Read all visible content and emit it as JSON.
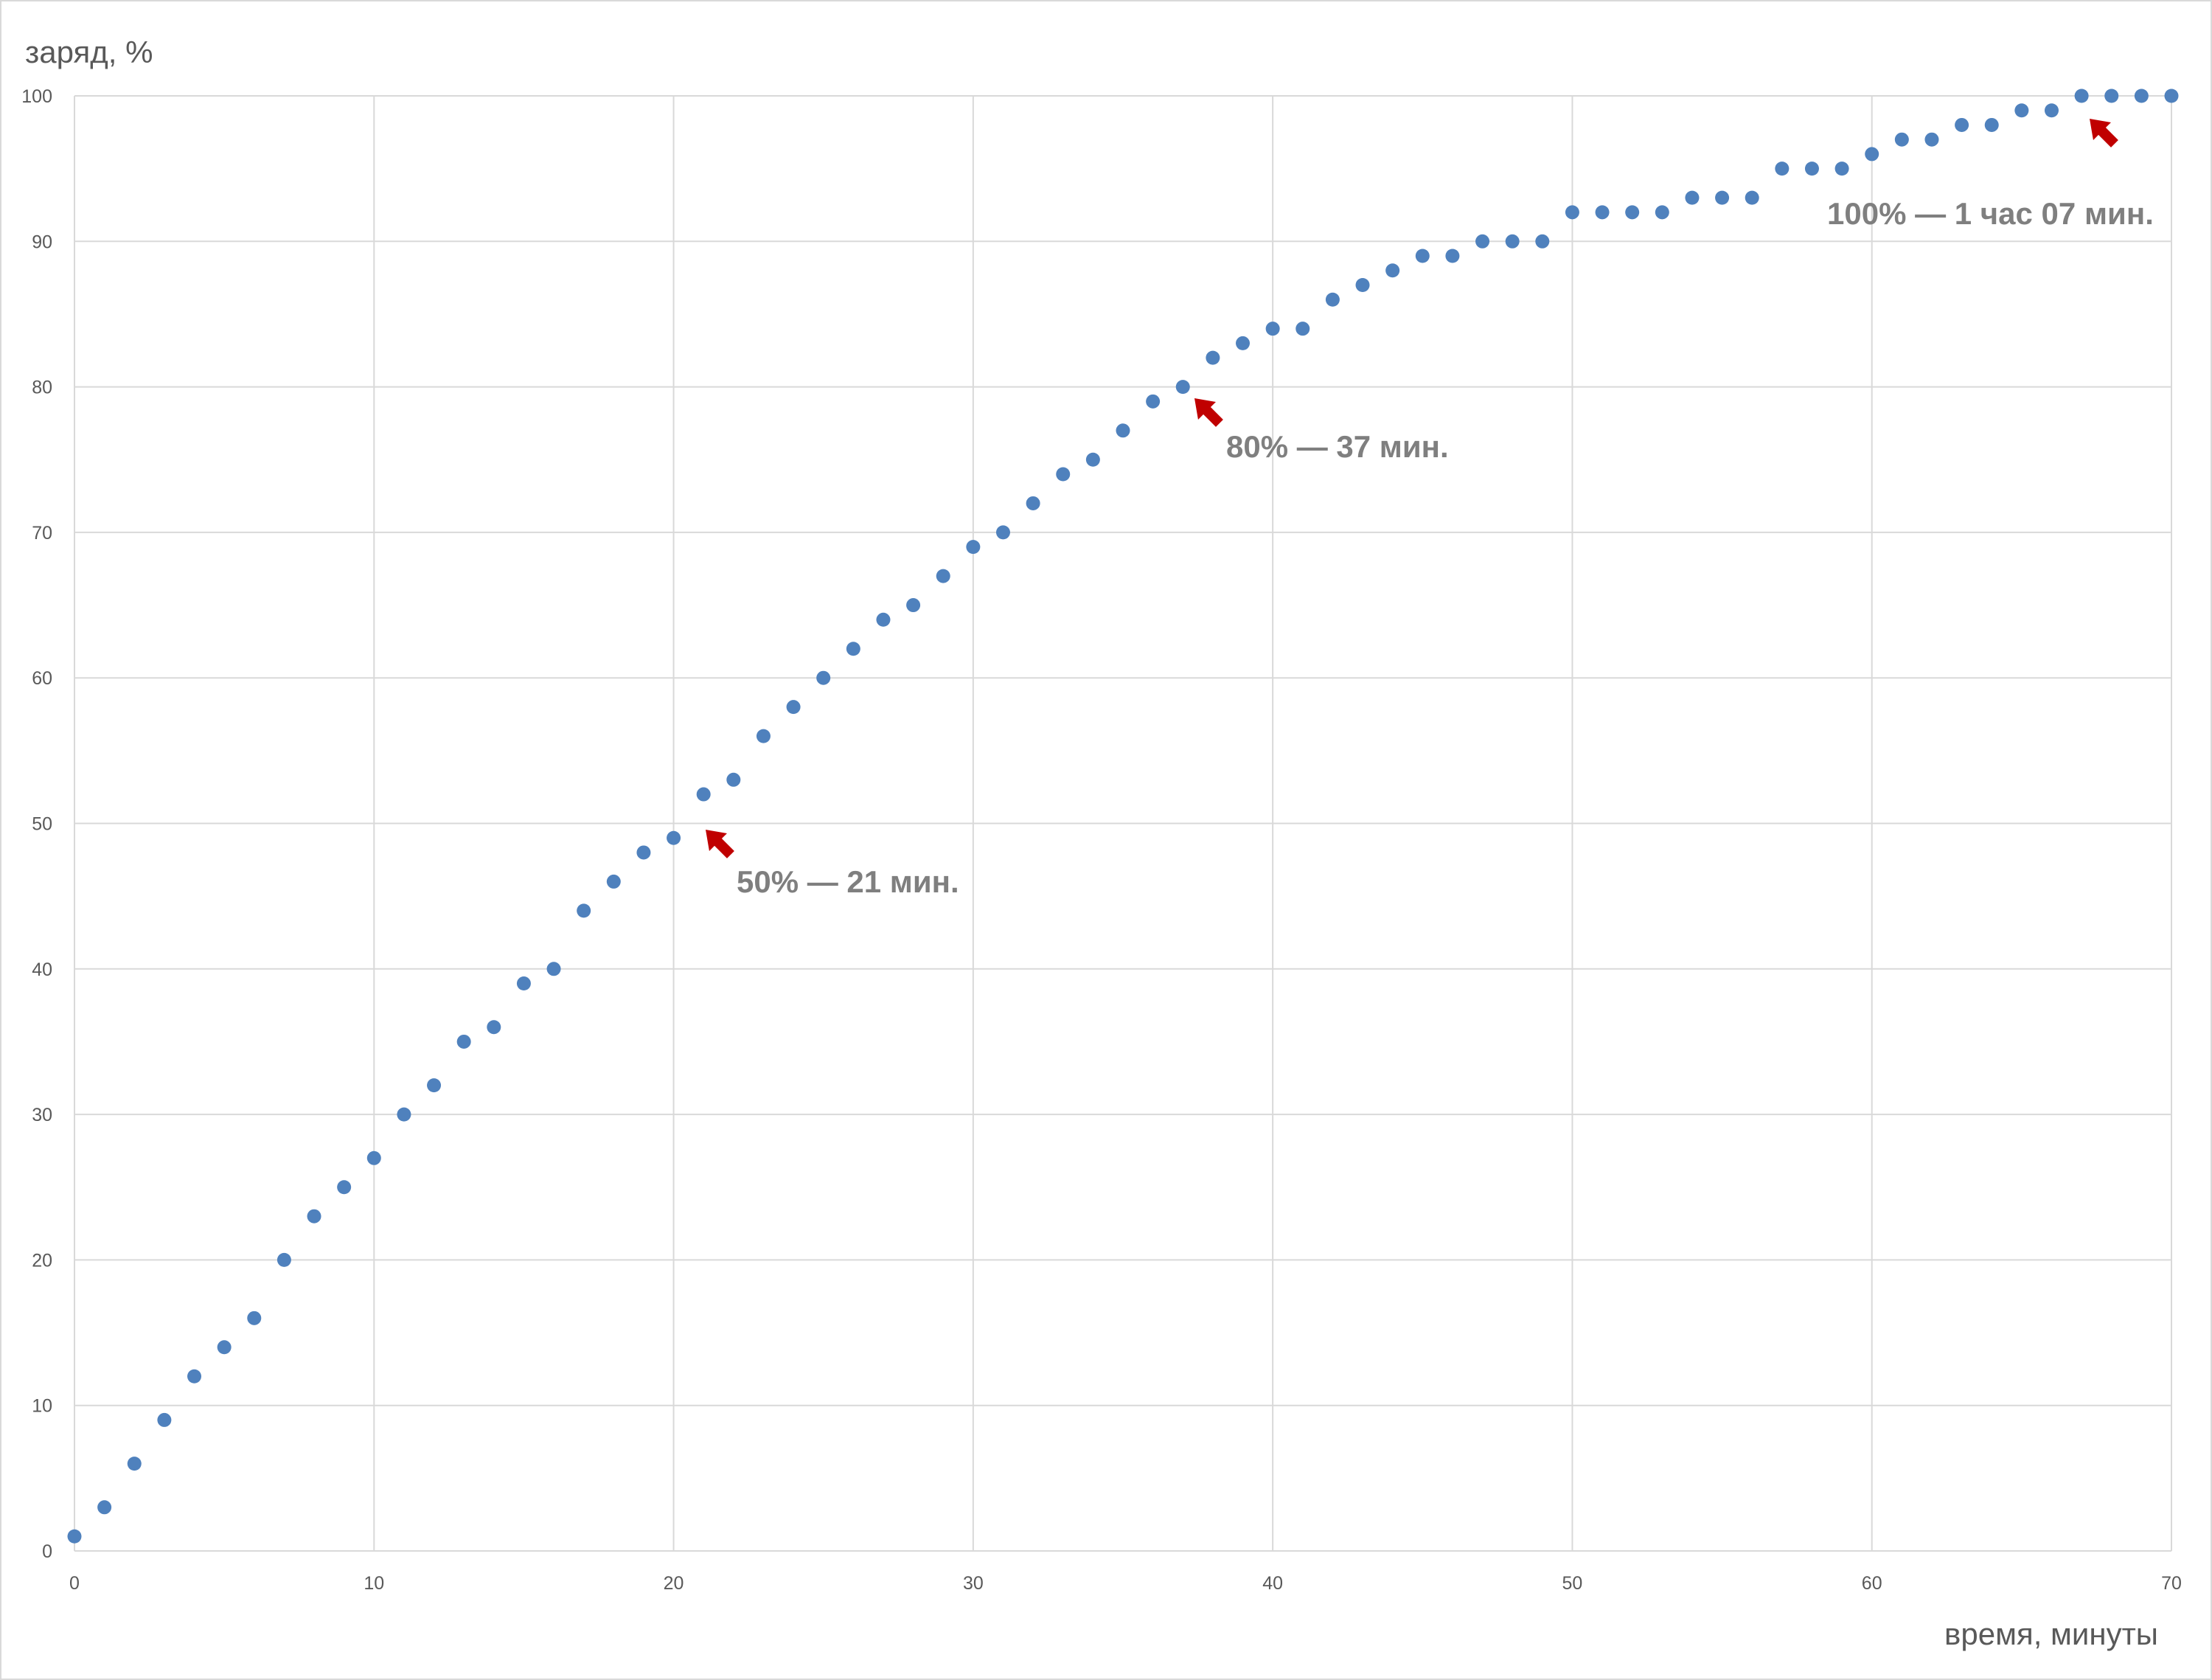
{
  "chart_data": {
    "type": "scatter",
    "y_axis_label": "заряд, %",
    "x_axis_label": "время, минуты",
    "annotations": [
      "50% — 21 мин.",
      "80% — 37 мин.",
      "100% — 1 час 07 мин."
    ],
    "x": [
      0,
      1,
      2,
      3,
      4,
      5,
      6,
      7,
      8,
      9,
      10,
      11,
      12,
      13,
      14,
      15,
      16,
      17,
      18,
      19,
      20,
      21,
      22,
      23,
      24,
      25,
      26,
      27,
      28,
      29,
      30,
      31,
      32,
      33,
      34,
      35,
      36,
      37,
      38,
      39,
      40,
      41,
      42,
      43,
      44,
      45,
      46,
      47,
      48,
      49,
      50,
      51,
      52,
      53,
      54,
      55,
      56,
      57,
      58,
      59,
      60,
      61,
      62,
      63,
      64,
      65,
      66,
      67,
      68,
      69,
      70
    ],
    "values": [
      1,
      3,
      6,
      9,
      12,
      14,
      16,
      20,
      23,
      25,
      27,
      30,
      32,
      35,
      36,
      39,
      40,
      44,
      46,
      48,
      49,
      52,
      53,
      56,
      58,
      60,
      62,
      64,
      65,
      67,
      69,
      70,
      72,
      74,
      75,
      77,
      79,
      80,
      82,
      83,
      84,
      84,
      86,
      87,
      88,
      89,
      89,
      90,
      90,
      90,
      92,
      92,
      92,
      92,
      93,
      93,
      93,
      95,
      95,
      95,
      96,
      97,
      97,
      98,
      98,
      99,
      99,
      100,
      100,
      100,
      100
    ],
    "color": "#4f81bd",
    "xlim": [
      0,
      70
    ],
    "xticks": [
      0,
      10,
      20,
      30,
      40,
      50,
      60,
      70
    ],
    "ylim": [
      0,
      100
    ],
    "yticks": [
      0,
      10,
      20,
      30,
      40,
      50,
      60,
      70,
      80,
      90,
      100
    ],
    "grid": true
  }
}
